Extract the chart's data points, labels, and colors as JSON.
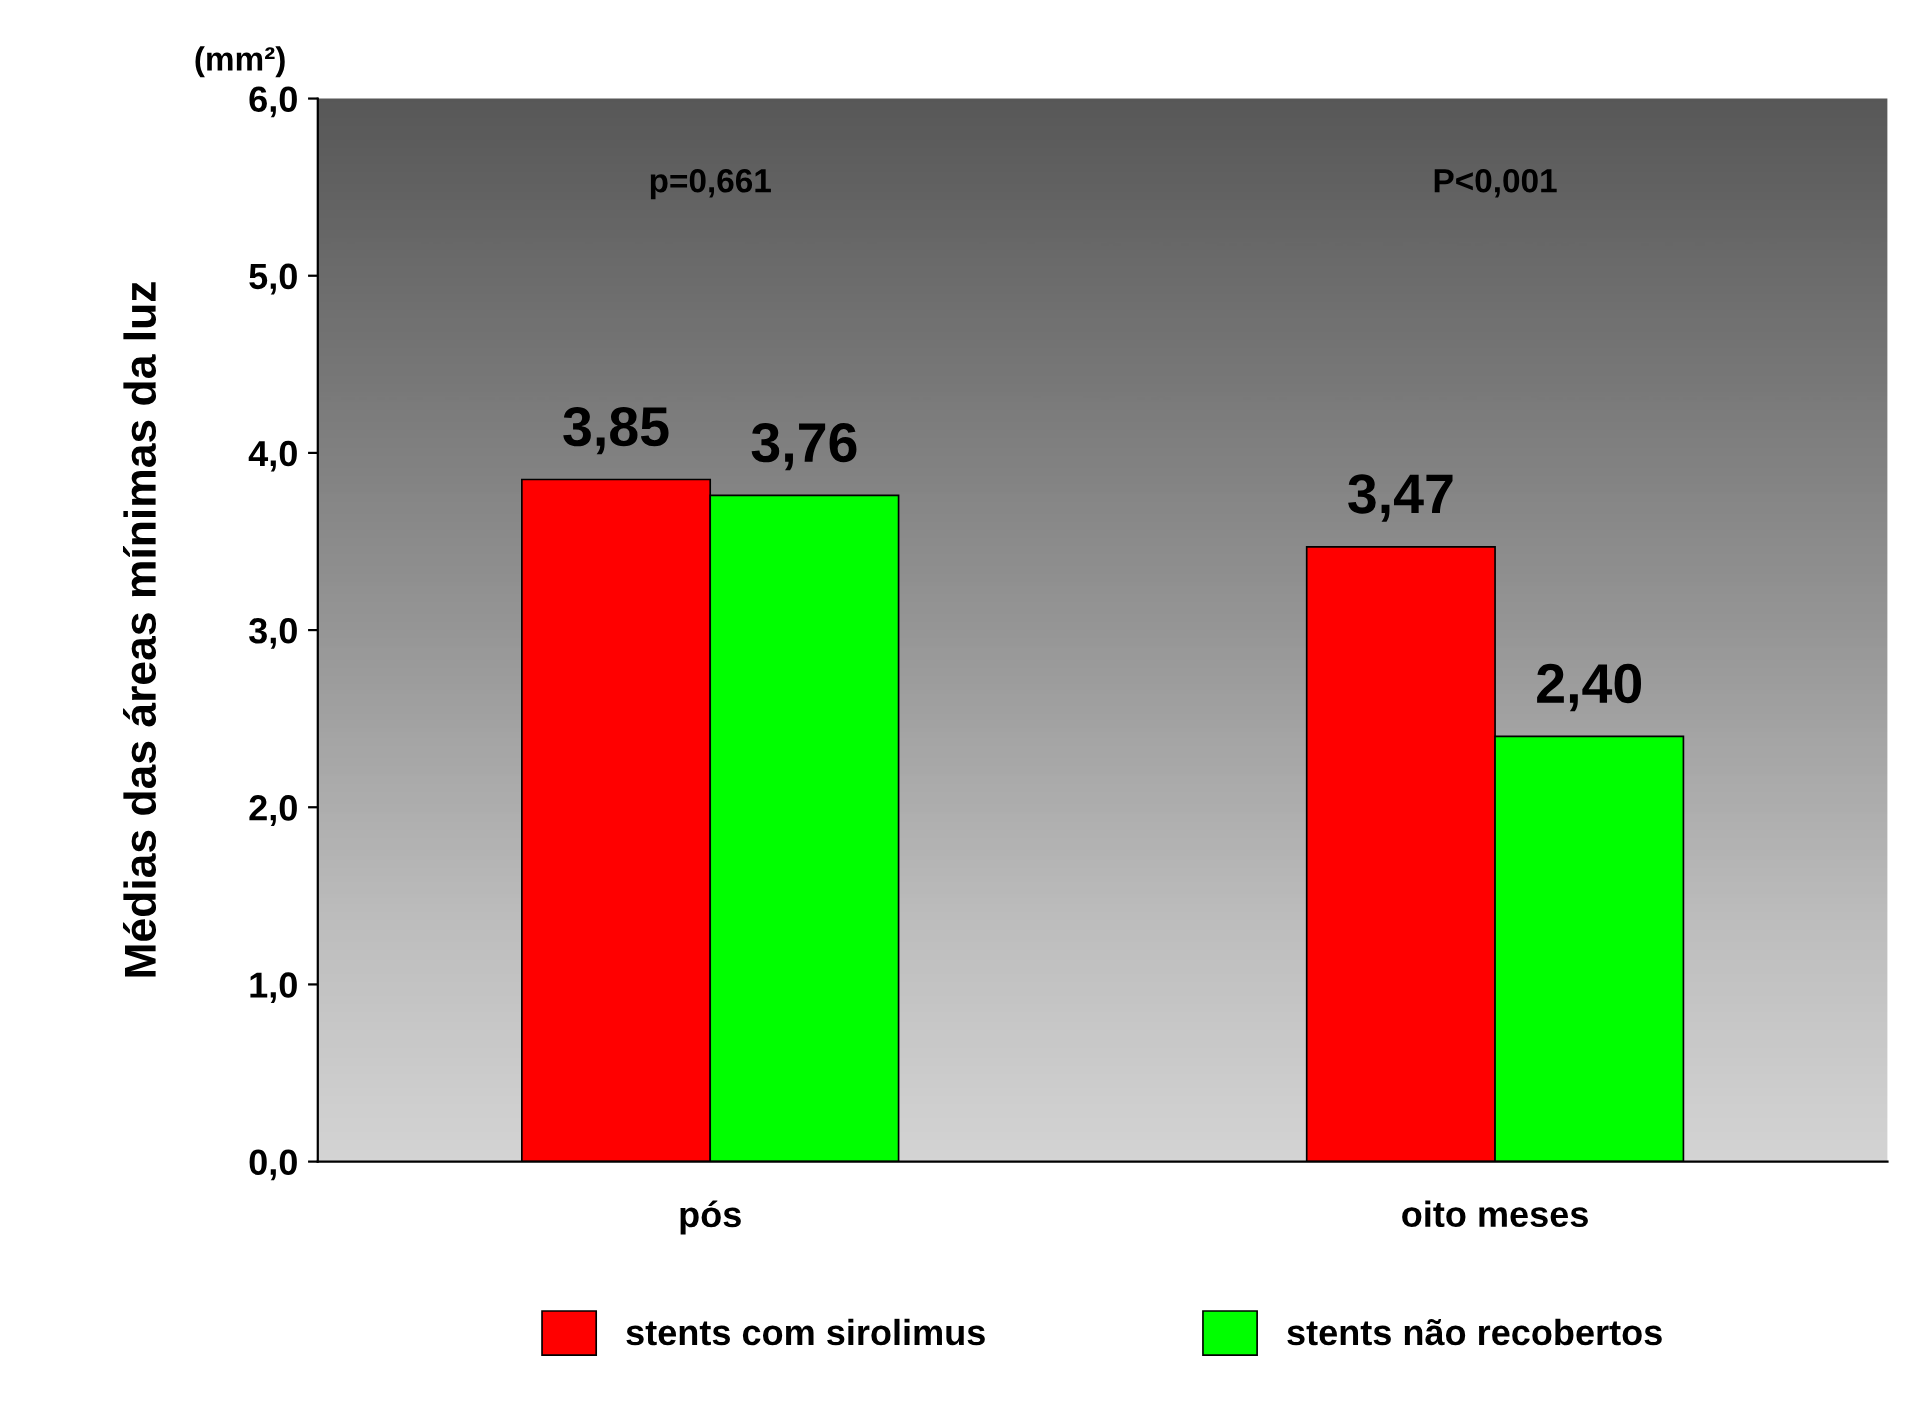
{
  "chart_data": {
    "type": "bar",
    "ylabel": "Médias das áreas mínimas da luz",
    "categories": [
      "pós",
      "oito meses"
    ],
    "series": [
      {
        "name": "stents com sirolimus",
        "color": "#ff0000",
        "values": [
          3.85,
          3.47
        ],
        "value_labels": [
          "3,85",
          "3,47"
        ]
      },
      {
        "name": "stents não recobertos",
        "color": "#00ff00",
        "values": [
          3.76,
          2.4
        ],
        "value_labels": [
          "3,76",
          "2,40"
        ]
      }
    ],
    "ylim": [
      0,
      6
    ],
    "yticks": [
      {
        "value": 0,
        "label": "0,0"
      },
      {
        "value": 1,
        "label": "1,0"
      },
      {
        "value": 2,
        "label": "2,0"
      },
      {
        "value": 3,
        "label": "3,0"
      },
      {
        "value": 4,
        "label": "4,0"
      },
      {
        "value": 5,
        "label": "5,0"
      },
      {
        "value": 6,
        "label": "6,0"
      }
    ],
    "annotations": [
      "(mm²)",
      "p=0,661",
      "P<0,001"
    ],
    "grid": false,
    "legend": "bottom"
  }
}
